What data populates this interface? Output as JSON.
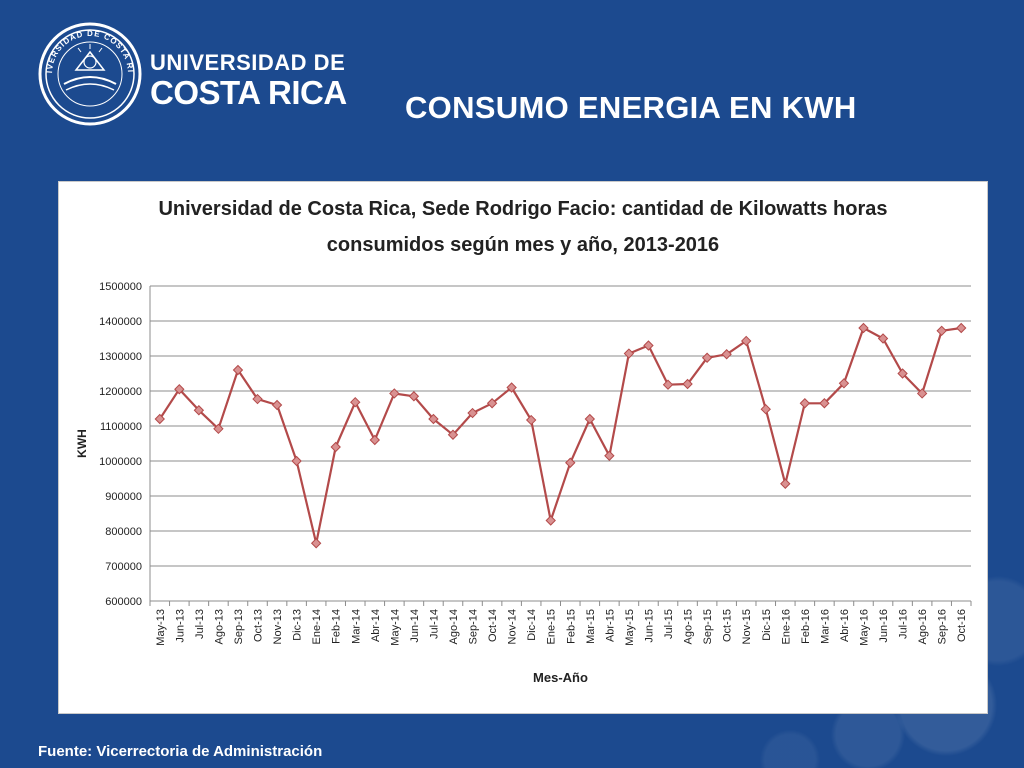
{
  "header": {
    "university_line1": "UNIVERSIDAD DE",
    "university_line2": "COSTA RICA",
    "slide_title": "CONSUMO ENERGIA EN KWH",
    "seal_text": "UNIVERSIDAD DE COSTA RICA"
  },
  "footer": {
    "source": "Fuente: Vicerrectoria de Administración"
  },
  "colors": {
    "background": "#1c4a8f",
    "series_line": "#b34a4a",
    "series_marker_fill": "#d99191",
    "series_marker_stroke": "#b34a4a"
  },
  "chart_data": {
    "type": "line",
    "title_line1": "Universidad de Costa Rica, Sede Rodrigo Facio: cantidad de Kilowatts horas",
    "title_line2": "consumidos según mes y año, 2013-2016",
    "xlabel": "Mes-Año",
    "ylabel": "KWH",
    "ylim": [
      600000,
      1500000
    ],
    "yticks": [
      600000,
      700000,
      800000,
      900000,
      1000000,
      1100000,
      1200000,
      1300000,
      1400000,
      1500000
    ],
    "grid": true,
    "legend": "none",
    "categories": [
      "May-13",
      "Jun-13",
      "Jul-13",
      "Ago-13",
      "Sep-13",
      "Oct-13",
      "Nov-13",
      "Dic-13",
      "Ene-14",
      "Feb-14",
      "Mar-14",
      "Abr-14",
      "May-14",
      "Jun-14",
      "Jul-14",
      "Ago-14",
      "Sep-14",
      "Oct-14",
      "Nov-14",
      "Dic-14",
      "Ene-15",
      "Feb-15",
      "Mar-15",
      "Abr-15",
      "May-15",
      "Jun-15",
      "Jul-15",
      "Ago-15",
      "Sep-15",
      "Oct-15",
      "Nov-15",
      "Dic-15",
      "Ene-16",
      "Feb-16",
      "Mar-16",
      "Abr-16",
      "May-16",
      "Jun-16",
      "Jul-16",
      "Ago-16",
      "Sep-16",
      "Oct-16"
    ],
    "values": [
      1120000,
      1205000,
      1145000,
      1092000,
      1260000,
      1177000,
      1160000,
      1000000,
      765000,
      1040000,
      1168000,
      1060000,
      1193000,
      1185000,
      1120000,
      1075000,
      1137000,
      1165000,
      1210000,
      1117000,
      830000,
      995000,
      1120000,
      1015000,
      1307000,
      1330000,
      1218000,
      1220000,
      1295000,
      1305000,
      1343000,
      1148000,
      935000,
      1165000,
      1165000,
      1222000,
      1380000,
      1350000,
      1250000,
      1193000,
      1372000,
      1380000
    ]
  }
}
